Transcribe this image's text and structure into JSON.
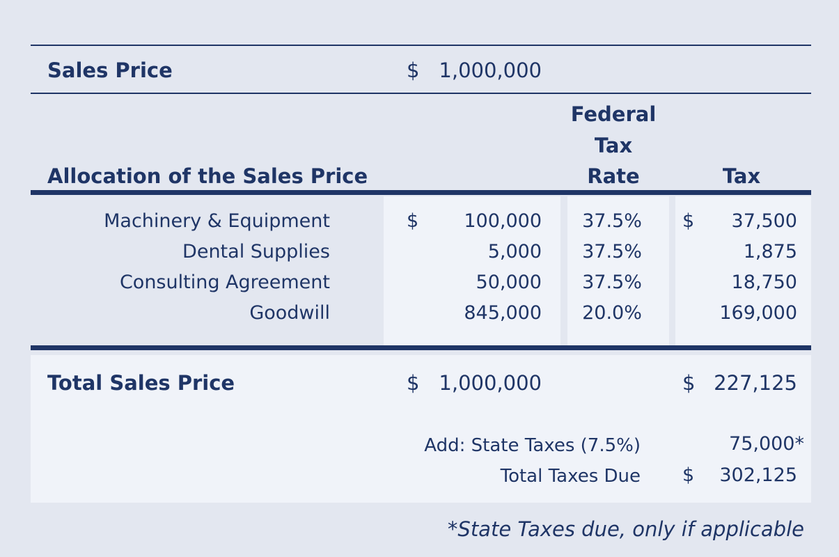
{
  "sales_price": {
    "label": "Sales Price",
    "currency": "$",
    "value": "1,000,000"
  },
  "header": {
    "allocation_label": "Allocation of the Sales Price",
    "rate_line1": "Federal",
    "rate_line2": "Tax",
    "rate_line3": "Rate",
    "tax_label": "Tax"
  },
  "rows": [
    {
      "name": "Machinery & Equipment",
      "cur1": "$",
      "amount": "100,000",
      "rate": "37.5%",
      "cur2": "$",
      "tax": "37,500"
    },
    {
      "name": "Dental Supplies",
      "cur1": "",
      "amount": "5,000",
      "rate": "37.5%",
      "cur2": "",
      "tax": "1,875"
    },
    {
      "name": "Consulting Agreement",
      "cur1": "",
      "amount": "50,000",
      "rate": "37.5%",
      "cur2": "",
      "tax": "18,750"
    },
    {
      "name": "Goodwill",
      "cur1": "",
      "amount": "845,000",
      "rate": "20.0%",
      "cur2": "",
      "tax": "169,000"
    }
  ],
  "total": {
    "label": "Total Sales Price",
    "cur1": "$",
    "amount": "1,000,000",
    "cur2": "$",
    "tax": "227,125"
  },
  "state_taxes": {
    "label": "Add: State Taxes (7.5%)",
    "value": "75,000*"
  },
  "total_taxes": {
    "label": "Total Taxes Due",
    "currency": "$",
    "value": "302,125"
  },
  "footnote": "*State Taxes due, only if applicable"
}
